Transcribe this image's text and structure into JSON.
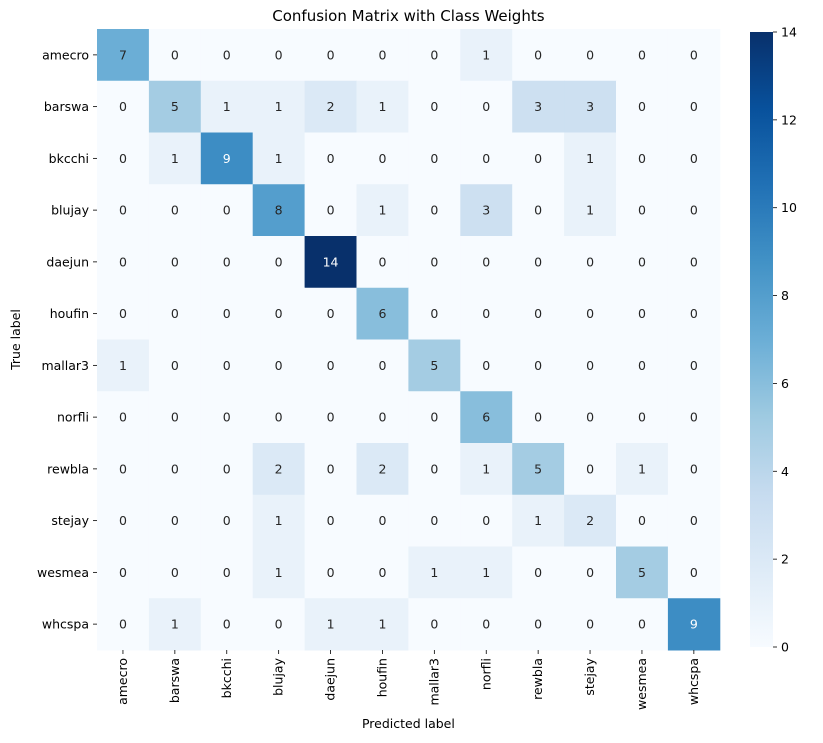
{
  "chart_data": {
    "type": "heatmap",
    "title": "Confusion Matrix with Class Weights",
    "xlabel": "Predicted label",
    "ylabel": "True label",
    "x_categories": [
      "amecro",
      "barswa",
      "bkcchi",
      "blujay",
      "daejun",
      "houfin",
      "mallar3",
      "norfli",
      "rewbla",
      "stejay",
      "wesmea",
      "whcspa"
    ],
    "y_categories": [
      "amecro",
      "barswa",
      "bkcchi",
      "blujay",
      "daejun",
      "houfin",
      "mallar3",
      "norfli",
      "rewbla",
      "stejay",
      "wesmea",
      "whcspa"
    ],
    "values": [
      [
        7,
        0,
        0,
        0,
        0,
        0,
        0,
        1,
        0,
        0,
        0,
        0
      ],
      [
        0,
        5,
        1,
        1,
        2,
        1,
        0,
        0,
        3,
        3,
        0,
        0
      ],
      [
        0,
        1,
        9,
        1,
        0,
        0,
        0,
        0,
        0,
        1,
        0,
        0
      ],
      [
        0,
        0,
        0,
        8,
        0,
        1,
        0,
        3,
        0,
        1,
        0,
        0
      ],
      [
        0,
        0,
        0,
        0,
        14,
        0,
        0,
        0,
        0,
        0,
        0,
        0
      ],
      [
        0,
        0,
        0,
        0,
        0,
        6,
        0,
        0,
        0,
        0,
        0,
        0
      ],
      [
        1,
        0,
        0,
        0,
        0,
        0,
        5,
        0,
        0,
        0,
        0,
        0
      ],
      [
        0,
        0,
        0,
        0,
        0,
        0,
        0,
        6,
        0,
        0,
        0,
        0
      ],
      [
        0,
        0,
        0,
        2,
        0,
        2,
        0,
        1,
        5,
        0,
        1,
        0
      ],
      [
        0,
        0,
        0,
        1,
        0,
        0,
        0,
        0,
        1,
        2,
        0,
        0
      ],
      [
        0,
        0,
        0,
        1,
        0,
        0,
        1,
        1,
        0,
        0,
        5,
        0
      ],
      [
        0,
        1,
        0,
        0,
        1,
        1,
        0,
        0,
        0,
        0,
        0,
        9
      ]
    ],
    "colorbar": {
      "min": 0,
      "max": 14,
      "ticks": [
        0,
        2,
        4,
        6,
        8,
        10,
        12,
        14
      ],
      "colormap": "Blues",
      "colors": [
        "#f7fbff",
        "#deebf7",
        "#c6dbef",
        "#9ecae1",
        "#6baed6",
        "#4292c6",
        "#2171b5",
        "#08519c",
        "#08306b"
      ]
    }
  }
}
